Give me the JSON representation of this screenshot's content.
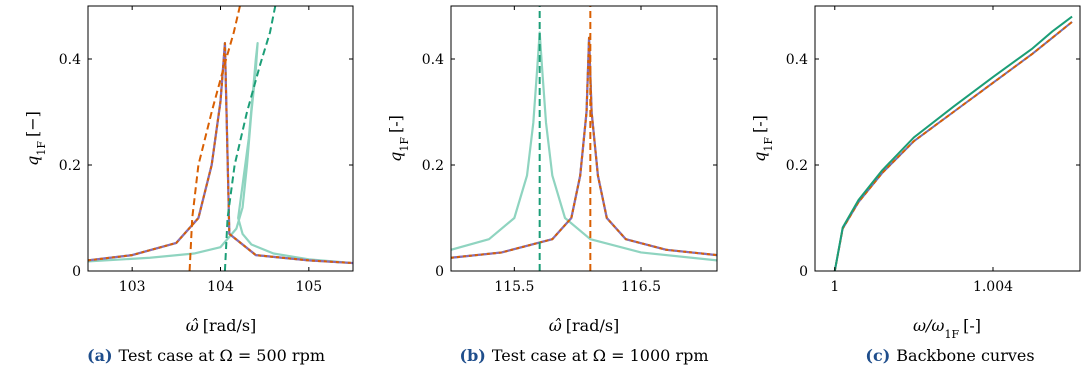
{
  "chart_data": [
    {
      "type": "line",
      "caption_tag": "(a)",
      "caption_text": "Test case at Ω = 500 rpm",
      "xlabel": "ω̂ [rad/s]",
      "ylabel": "q",
      "ylabel_sub": "1F",
      "ylabel_unit": "[−]",
      "xlim": [
        102.5,
        105.5
      ],
      "ylim": [
        0,
        0.5
      ],
      "xticks": [
        103,
        104,
        105
      ],
      "xtick_labels": [
        "103",
        "104",
        "105"
      ],
      "yticks": [
        0,
        0.2,
        0.4
      ],
      "ytick_labels": [
        "0",
        "0.2",
        "0.4"
      ],
      "series": [
        {
          "style": "solid-light-teal",
          "color": "#8fd4c0",
          "x": [
            102.5,
            103.2,
            103.7,
            104.0,
            104.18,
            104.25,
            104.3,
            104.35,
            104.4,
            104.42,
            104.4,
            104.32,
            104.24,
            104.2,
            104.25,
            104.35,
            104.6,
            105.0,
            105.5
          ],
          "y": [
            0.018,
            0.025,
            0.033,
            0.045,
            0.08,
            0.12,
            0.2,
            0.3,
            0.38,
            0.43,
            0.4,
            0.25,
            0.15,
            0.1,
            0.07,
            0.05,
            0.033,
            0.022,
            0.015
          ]
        },
        {
          "style": "solid-light-teal",
          "color": "#8fd4c0",
          "x": [
            102.5,
            103.0,
            103.5,
            103.75,
            103.9,
            104.0,
            104.05,
            104.1,
            104.4,
            105.0,
            105.5
          ],
          "y": [
            0.02,
            0.03,
            0.053,
            0.1,
            0.2,
            0.32,
            0.43,
            0.07,
            0.03,
            0.02,
            0.015
          ]
        },
        {
          "style": "dash-purple-orange",
          "color": "#8c6bb1",
          "color2": "#d95f02",
          "x": [
            102.5,
            103.0,
            103.5,
            103.75,
            103.9,
            104.0,
            104.05,
            104.1,
            104.4,
            105.0,
            105.5
          ],
          "y": [
            0.02,
            0.03,
            0.053,
            0.1,
            0.2,
            0.32,
            0.43,
            0.07,
            0.03,
            0.02,
            0.015
          ]
        },
        {
          "style": "dash-orange",
          "color": "#d95f02",
          "x": [
            103.65,
            103.68,
            103.75,
            103.9,
            104.03,
            104.15,
            104.22
          ],
          "y": [
            0,
            0.1,
            0.2,
            0.3,
            0.38,
            0.45,
            0.5
          ]
        },
        {
          "style": "dash-teal",
          "color": "#1b9e77",
          "x": [
            104.05,
            104.08,
            104.16,
            104.3,
            104.45,
            104.56,
            104.62
          ],
          "y": [
            0,
            0.1,
            0.2,
            0.3,
            0.39,
            0.45,
            0.5
          ]
        }
      ]
    },
    {
      "type": "line",
      "caption_tag": "(b)",
      "caption_text": "Test case at Ω = 1000 rpm",
      "xlabel": "ω̂ [rad/s]",
      "ylabel": "q",
      "ylabel_sub": "1F",
      "ylabel_unit": "[-]",
      "xlim": [
        115.0,
        117.1
      ],
      "ylim": [
        0,
        0.5
      ],
      "xticks": [
        115.5,
        116.5
      ],
      "xtick_labels": [
        "115.5",
        "116.5"
      ],
      "yticks": [
        0,
        0.2,
        0.4
      ],
      "ytick_labels": [
        "0",
        "0.2",
        "0.4"
      ],
      "series": [
        {
          "style": "solid-light-teal",
          "color": "#8fd4c0",
          "x": [
            115.0,
            115.3,
            115.5,
            115.6,
            115.65,
            115.68,
            115.7,
            115.72,
            115.75,
            115.8,
            115.9,
            116.1,
            116.5,
            117.1
          ],
          "y": [
            0.04,
            0.06,
            0.1,
            0.18,
            0.28,
            0.38,
            0.45,
            0.38,
            0.28,
            0.18,
            0.1,
            0.06,
            0.035,
            0.02
          ]
        },
        {
          "style": "solid-light-teal",
          "color": "#8fd4c0",
          "x": [
            115.0,
            115.4,
            115.8,
            115.95,
            116.02,
            116.07,
            116.09,
            116.11,
            116.16,
            116.23,
            116.38,
            116.7,
            117.1
          ],
          "y": [
            0.025,
            0.035,
            0.06,
            0.1,
            0.18,
            0.3,
            0.44,
            0.3,
            0.18,
            0.1,
            0.06,
            0.04,
            0.03
          ]
        },
        {
          "style": "dash-purple-orange",
          "color": "#8c6bb1",
          "color2": "#d95f02",
          "x": [
            115.0,
            115.4,
            115.8,
            115.95,
            116.02,
            116.07,
            116.09,
            116.11,
            116.16,
            116.23,
            116.38,
            116.7,
            117.1
          ],
          "y": [
            0.025,
            0.035,
            0.06,
            0.1,
            0.18,
            0.3,
            0.44,
            0.3,
            0.18,
            0.1,
            0.06,
            0.04,
            0.03
          ]
        },
        {
          "style": "dash-teal",
          "color": "#1b9e77",
          "x": [
            115.7,
            115.7
          ],
          "y": [
            0,
            0.5
          ]
        },
        {
          "style": "dash-orange",
          "color": "#d95f02",
          "x": [
            116.1,
            116.1
          ],
          "y": [
            0,
            0.5
          ]
        }
      ]
    },
    {
      "type": "line",
      "caption_tag": "(c)",
      "caption_text": "Backbone curves",
      "xlabel": "ω/ω",
      "xlabel_sub": "1F",
      "xlabel_unit": "[-]",
      "ylabel": "q",
      "ylabel_sub": "1F",
      "ylabel_unit": "[-]",
      "xlim": [
        0.9995,
        1.0062
      ],
      "ylim": [
        0,
        0.5
      ],
      "xticks": [
        1.0,
        1.004
      ],
      "xtick_labels": [
        "1",
        "1.004"
      ],
      "yticks": [
        0,
        0.2,
        0.4
      ],
      "ytick_labels": [
        "0",
        "0.2",
        "0.4"
      ],
      "series": [
        {
          "style": "solid-blue",
          "color": "#7570b3",
          "x": [
            1.0,
            1.0002,
            1.0006,
            1.0012,
            1.002,
            1.003,
            1.004,
            1.005,
            1.0055,
            1.006
          ],
          "y": [
            0,
            0.08,
            0.13,
            0.185,
            0.245,
            0.3,
            0.355,
            0.41,
            0.44,
            0.47
          ]
        },
        {
          "style": "dash-orange-overlay",
          "color": "#d95f02",
          "x": [
            1.0,
            1.0002,
            1.0006,
            1.0012,
            1.002,
            1.003,
            1.004,
            1.005,
            1.0055,
            1.006
          ],
          "y": [
            0,
            0.08,
            0.13,
            0.185,
            0.245,
            0.3,
            0.355,
            0.41,
            0.44,
            0.47
          ]
        },
        {
          "style": "solid-teal",
          "color": "#1b9e77",
          "x": [
            1.0,
            1.0002,
            1.0006,
            1.0012,
            1.002,
            1.003,
            1.004,
            1.005,
            1.0055,
            1.006
          ],
          "y": [
            0,
            0.082,
            0.134,
            0.19,
            0.252,
            0.31,
            0.366,
            0.42,
            0.452,
            0.48
          ]
        }
      ]
    }
  ]
}
